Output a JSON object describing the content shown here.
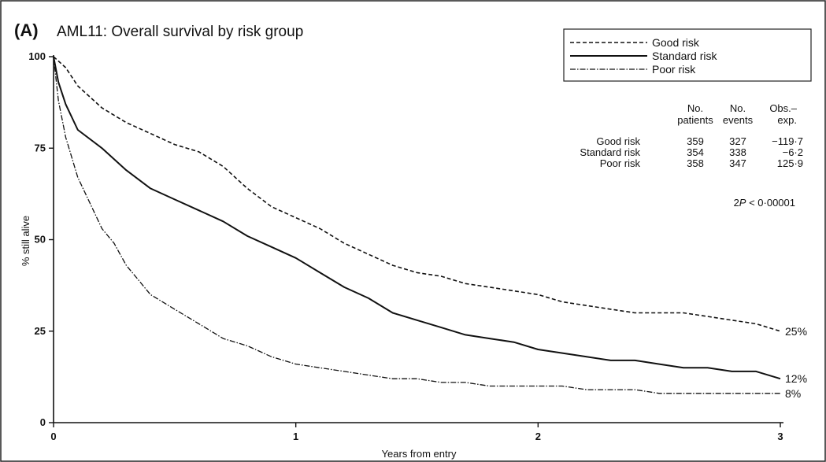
{
  "chart_data": {
    "type": "line",
    "panel_label": "(A)",
    "title": "AML11: Overall survival by risk group",
    "xlabel": "Years from entry",
    "ylabel": "% still alive",
    "xlim": [
      0,
      3
    ],
    "ylim": [
      0,
      100
    ],
    "x_ticks": [
      0,
      1,
      2,
      3
    ],
    "x_tick_labels": [
      "0",
      "1",
      "2",
      "3"
    ],
    "y_ticks": [
      0,
      25,
      50,
      75,
      100
    ],
    "y_tick_labels": [
      "0",
      "25",
      "50",
      "75",
      "100"
    ],
    "grid": false,
    "legend_position": "top-right",
    "series": [
      {
        "name": "Good risk",
        "style": "dashed",
        "end_label": "25%",
        "x": [
          0,
          0.05,
          0.1,
          0.2,
          0.3,
          0.4,
          0.5,
          0.6,
          0.7,
          0.8,
          0.9,
          1.0,
          1.1,
          1.2,
          1.3,
          1.4,
          1.5,
          1.6,
          1.7,
          1.8,
          1.9,
          2.0,
          2.1,
          2.2,
          2.3,
          2.4,
          2.5,
          2.6,
          2.7,
          2.8,
          2.9,
          3.0
        ],
        "y": [
          100,
          97,
          92,
          86,
          82,
          79,
          76,
          74,
          70,
          64,
          59,
          56,
          53,
          49,
          46,
          43,
          41,
          40,
          38,
          37,
          36,
          35,
          33,
          32,
          31,
          30,
          30,
          30,
          29,
          28,
          27,
          25
        ]
      },
      {
        "name": "Standard risk",
        "style": "solid",
        "end_label": "12%",
        "x": [
          0,
          0.02,
          0.05,
          0.1,
          0.2,
          0.3,
          0.4,
          0.5,
          0.6,
          0.7,
          0.8,
          0.9,
          1.0,
          1.1,
          1.2,
          1.3,
          1.4,
          1.5,
          1.6,
          1.7,
          1.8,
          1.9,
          2.0,
          2.1,
          2.2,
          2.3,
          2.4,
          2.5,
          2.6,
          2.7,
          2.8,
          2.9,
          3.0
        ],
        "y": [
          100,
          93,
          87,
          80,
          75,
          69,
          64,
          61,
          58,
          55,
          51,
          48,
          45,
          41,
          37,
          34,
          30,
          28,
          26,
          24,
          23,
          22,
          20,
          19,
          18,
          17,
          17,
          16,
          15,
          15,
          14,
          14,
          12
        ]
      },
      {
        "name": "Poor risk",
        "style": "dash-dot",
        "end_label": "8%",
        "x": [
          0,
          0.02,
          0.05,
          0.1,
          0.15,
          0.2,
          0.25,
          0.3,
          0.35,
          0.4,
          0.5,
          0.6,
          0.7,
          0.8,
          0.9,
          1.0,
          1.1,
          1.2,
          1.3,
          1.4,
          1.5,
          1.6,
          1.7,
          1.8,
          1.9,
          2.0,
          2.1,
          2.2,
          2.3,
          2.4,
          2.5,
          2.6,
          2.7,
          2.8,
          2.9,
          3.0
        ],
        "y": [
          100,
          88,
          78,
          67,
          60,
          53,
          49,
          43,
          39,
          35,
          31,
          27,
          23,
          21,
          18,
          16,
          15,
          14,
          13,
          12,
          12,
          11,
          11,
          10,
          10,
          10,
          10,
          9,
          9,
          9,
          8,
          8,
          8,
          8,
          8,
          8
        ]
      }
    ],
    "legend": [
      {
        "label": "Good risk",
        "style": "dashed"
      },
      {
        "label": "Standard risk",
        "style": "solid"
      },
      {
        "label": "Poor risk",
        "style": "dash-dot"
      }
    ],
    "summary_table": {
      "headers": [
        [
          "No.",
          "patients"
        ],
        [
          "No.",
          "events"
        ],
        [
          "Obs.–",
          "exp."
        ]
      ],
      "rows": [
        {
          "group": "Good risk",
          "patients": "359",
          "events": "327",
          "obs_minus_exp": "−119·7"
        },
        {
          "group": "Standard risk",
          "patients": "354",
          "events": "338",
          "obs_minus_exp": "−6·2"
        },
        {
          "group": "Poor risk",
          "patients": "358",
          "events": "347",
          "obs_minus_exp": "125·9"
        }
      ],
      "p_value": {
        "prefix": "2",
        "italic": "P",
        "rest": " < 0·00001"
      }
    }
  }
}
